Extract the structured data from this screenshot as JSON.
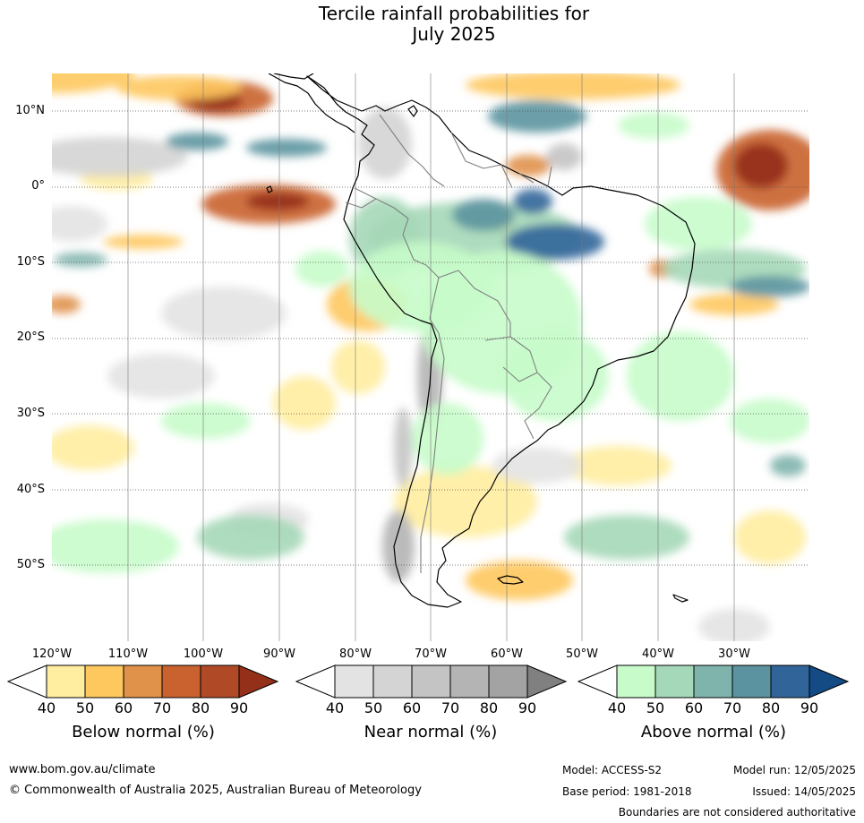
{
  "title_line1": "Tercile rainfall probabilities for",
  "title_line2": "July 2025",
  "lat_labels": [
    "10°N",
    "0°",
    "10°S",
    "20°S",
    "30°S",
    "40°S",
    "50°S"
  ],
  "lon_labels": [
    "120°W",
    "110°W",
    "100°W",
    "90°W",
    "80°W",
    "70°W",
    "60°W",
    "50°W",
    "40°W",
    "30°W"
  ],
  "colorbars": [
    {
      "title": "Below normal (%)",
      "ticks": [
        "40",
        "50",
        "60",
        "70",
        "80",
        "90"
      ],
      "colors": [
        "#ffeda0",
        "#fec85e",
        "#e0914a",
        "#c9622f",
        "#b04a26",
        "#943019"
      ]
    },
    {
      "title": "Near normal (%)",
      "ticks": [
        "40",
        "50",
        "60",
        "70",
        "80",
        "90"
      ],
      "colors": [
        "#e3e3e3",
        "#d4d4d4",
        "#c4c4c4",
        "#b4b4b4",
        "#a3a3a3",
        "#808080"
      ]
    },
    {
      "title": "Above normal (%)",
      "ticks": [
        "40",
        "50",
        "60",
        "70",
        "80",
        "90"
      ],
      "colors": [
        "#c7fcca",
        "#a5d8b8",
        "#7fb4ad",
        "#5b93a0",
        "#31659a",
        "#154b84"
      ]
    }
  ],
  "footer": {
    "website": "www.bom.gov.au/climate",
    "copyright": "© Commonwealth of Australia 2025, Australian Bureau of Meteorology",
    "model": "Model: ACCESS-S2",
    "base_period": "Base period: 1981-2018",
    "model_run": "Model run: 12/05/2025",
    "issued": "Issued: 14/05/2025",
    "disclaimer": "Boundaries are not considered authoritative"
  }
}
